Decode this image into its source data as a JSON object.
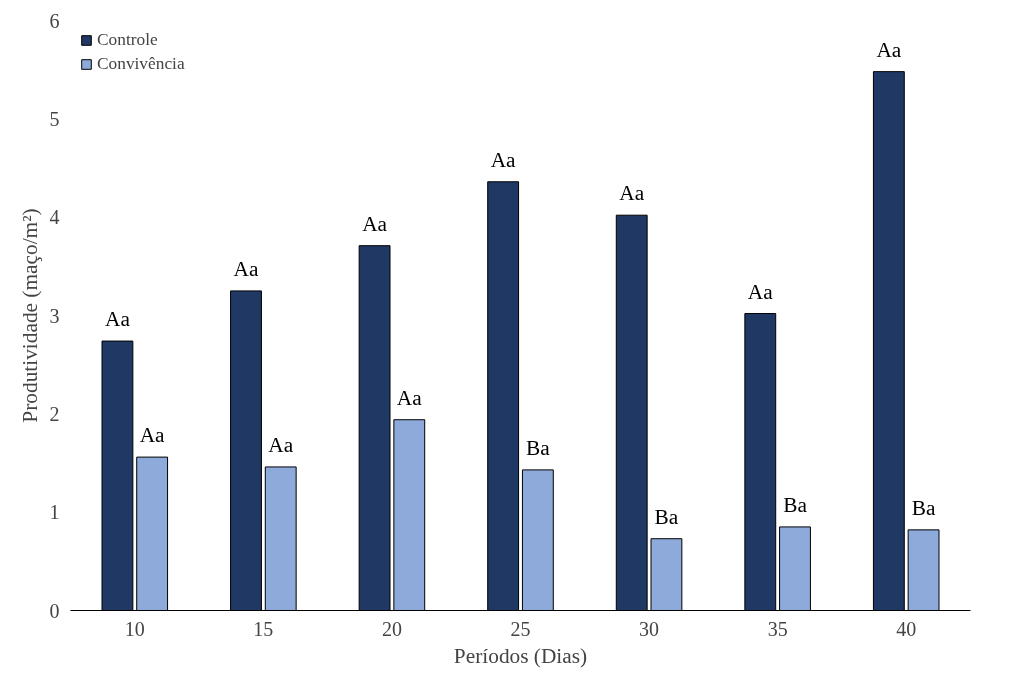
{
  "chart_data": {
    "type": "bar",
    "xlabel": "Períodos (Dias)",
    "ylabel": "Produtividade (maço/m²)",
    "categories": [
      "10",
      "15",
      "20",
      "25",
      "30",
      "35",
      "40"
    ],
    "series": [
      {
        "name": "Controle",
        "color": "#1f3864",
        "values": [
          2.74,
          3.25,
          3.71,
          4.36,
          4.02,
          3.02,
          5.48
        ],
        "value_labels": [
          "Aa",
          "Aa",
          "Aa",
          "Aa",
          "Aa",
          "Aa",
          "Aa"
        ]
      },
      {
        "name": "Convivência",
        "color": "#8eaadb",
        "values": [
          1.56,
          1.46,
          1.94,
          1.43,
          0.73,
          0.85,
          0.82
        ],
        "value_labels": [
          "Aa",
          "Aa",
          "Aa",
          "Ba",
          "Ba",
          "Ba",
          "Ba"
        ]
      }
    ],
    "ylim": [
      0,
      6
    ],
    "yticks": [
      0,
      1,
      2,
      3,
      4,
      5,
      6
    ],
    "grid": false,
    "legend": "top left"
  }
}
